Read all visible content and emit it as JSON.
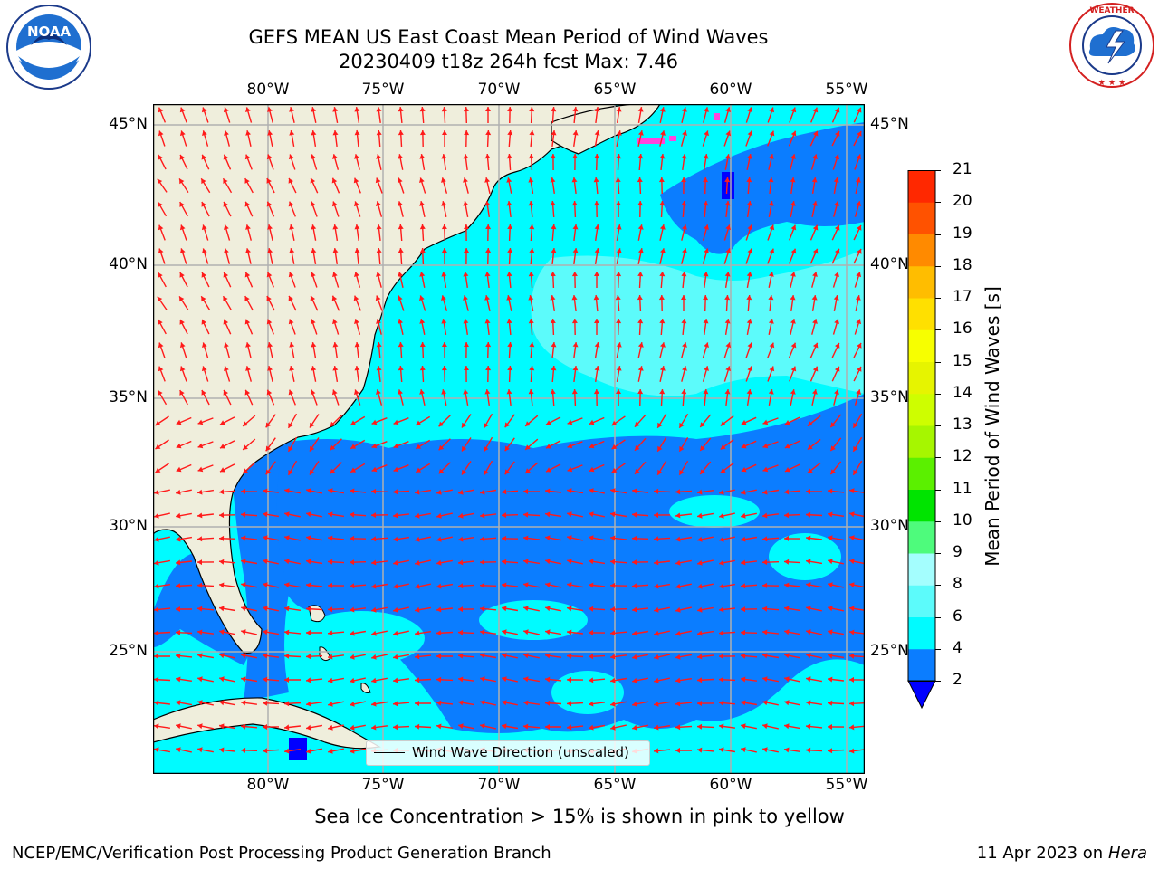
{
  "title_line1": "GEFS MEAN US East Coast Mean Period of Wind Waves",
  "title_line2": "20230409 t18z 264h fcst   Max: 7.46",
  "logos": {
    "left": {
      "text": "NOAA",
      "ring_text": "NATIONAL OCEANIC AND ATMOSPHERIC ADMINISTRATION · U.S. DEPARTMENT OF COMMERCE"
    },
    "right": {
      "ring_text": "NATIONAL WEATHER SERVICE"
    }
  },
  "map": {
    "longitude_ticks": [
      "80°W",
      "75°W",
      "70°W",
      "65°W",
      "60°W",
      "55°W"
    ],
    "latitude_ticks": [
      "45°N",
      "40°N",
      "35°N",
      "30°N",
      "25°N"
    ],
    "colors": {
      "land": "#efeedc",
      "ocean_low": "#0b7dff",
      "ocean_mid": "#00fbff",
      "ocean_high": "#5cfbfb",
      "arrow": "#ff1a1a",
      "grid": "#b0b0b0",
      "ice": "#ff44dd"
    },
    "legend_label": "Wind Wave Direction (unscaled)"
  },
  "colorbar": {
    "label": "Mean Period of Wind Waves [s]",
    "ticks": [
      "2",
      "4",
      "6",
      "8",
      "9",
      "10",
      "11",
      "12",
      "13",
      "14",
      "15",
      "16",
      "17",
      "18",
      "19",
      "20",
      "21"
    ],
    "colors": [
      "#0b7dff",
      "#00fbff",
      "#5cfbfb",
      "#a4fefe",
      "#4efb7c",
      "#00e400",
      "#5bf000",
      "#a6f600",
      "#cefe00",
      "#e6f400",
      "#f7ff00",
      "#ffe000",
      "#ffbd00",
      "#ff8a00",
      "#ff5200",
      "#ff2800",
      "#ff0000"
    ],
    "under_color": "#0000ff"
  },
  "subtitle": "Sea Ice Concentration > 15% is shown in pink to yellow",
  "footer_left": "NCEP/EMC/Verification Post Processing Product Generation Branch",
  "footer_right_prefix": "11 Apr 2023 on ",
  "footer_right_host": "Hera"
}
